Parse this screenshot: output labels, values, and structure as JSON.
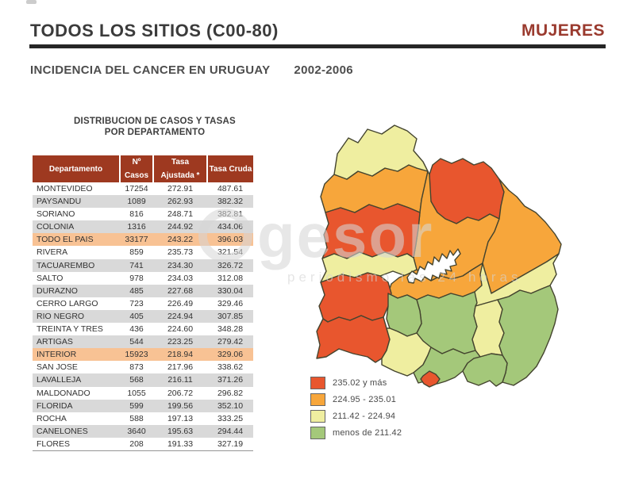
{
  "header": {
    "title": "TODOS LOS SITIOS (C00-80)",
    "gender_label": "MUJERES",
    "subtitle": "INCIDENCIA DEL CANCER EN URUGUAY",
    "period": "2002-2006"
  },
  "watermark": {
    "text": "gesor",
    "subtext": "periodismo las 24 horas"
  },
  "colors": {
    "red": "#E8562E",
    "orange": "#F7A63B",
    "paleYellow": "#EFEEA0",
    "green": "#A4C87A",
    "headerBg": "#9E3920",
    "rowGray": "#D9D9D9",
    "rowHighlight": "#F8C294",
    "mapStroke": "#44442F",
    "titleRed": "#9A3A2E"
  },
  "legend": {
    "items": [
      {
        "label": "235.02 y más",
        "color": "red"
      },
      {
        "label": "224.95 -  235.01",
        "color": "orange"
      },
      {
        "label": "211.42 -  224.94",
        "color": "paleYellow"
      },
      {
        "label": "menos de 211.42",
        "color": "green"
      }
    ]
  },
  "chart_data": {
    "type": "table",
    "table": {
      "caption_line1": "DISTRIBUCION DE CASOS Y TASAS",
      "caption_line2": "POR DEPARTAMENTO",
      "columns": [
        "Departamento",
        "Nº Casos",
        "Tasa Ajustada *",
        "Tasa Cruda"
      ],
      "rows": [
        {
          "department": "MONTEVIDEO",
          "cases": "17254",
          "adjusted": "272.91",
          "crude": "487.61",
          "style": "white"
        },
        {
          "department": "PAYSANDU",
          "cases": "1089",
          "adjusted": "262.93",
          "crude": "382.32",
          "style": "gray"
        },
        {
          "department": "SORIANO",
          "cases": "816",
          "adjusted": "248.71",
          "crude": "382.81",
          "style": "white"
        },
        {
          "department": "COLONIA",
          "cases": "1316",
          "adjusted": "244.92",
          "crude": "434.06",
          "style": "gray"
        },
        {
          "department": "TODO EL PAIS",
          "cases": "33177",
          "adjusted": "243.22",
          "crude": "396.03",
          "style": "highlight"
        },
        {
          "department": "RIVERA",
          "cases": "859",
          "adjusted": "235.73",
          "crude": "321.54",
          "style": "white"
        },
        {
          "department": "TACUAREMBO",
          "cases": "741",
          "adjusted": "234.30",
          "crude": "326.72",
          "style": "gray"
        },
        {
          "department": "SALTO",
          "cases": "978",
          "adjusted": "234.03",
          "crude": "312.08",
          "style": "white"
        },
        {
          "department": "DURAZNO",
          "cases": "485",
          "adjusted": "227.68",
          "crude": "330.04",
          "style": "gray"
        },
        {
          "department": "CERRO LARGO",
          "cases": "723",
          "adjusted": "226.49",
          "crude": "329.46",
          "style": "white"
        },
        {
          "department": "RIO NEGRO",
          "cases": "405",
          "adjusted": "224.94",
          "crude": "307.85",
          "style": "gray"
        },
        {
          "department": "TREINTA Y TRES",
          "cases": "436",
          "adjusted": "224.60",
          "crude": "348.28",
          "style": "white"
        },
        {
          "department": "ARTIGAS",
          "cases": "544",
          "adjusted": "223.25",
          "crude": "279.42",
          "style": "gray"
        },
        {
          "department": "INTERIOR",
          "cases": "15923",
          "adjusted": "218.94",
          "crude": "329.06",
          "style": "highlight"
        },
        {
          "department": "SAN JOSE",
          "cases": "873",
          "adjusted": "217.96",
          "crude": "338.62",
          "style": "white"
        },
        {
          "department": "LAVALLEJA",
          "cases": "568",
          "adjusted": "216.11",
          "crude": "371.26",
          "style": "gray"
        },
        {
          "department": "MALDONADO",
          "cases": "1055",
          "adjusted": "206.72",
          "crude": "296.82",
          "style": "white"
        },
        {
          "department": "FLORIDA",
          "cases": "599",
          "adjusted": "199.56",
          "crude": "352.10",
          "style": "gray"
        },
        {
          "department": "ROCHA",
          "cases": "588",
          "adjusted": "197.13",
          "crude": "333.25",
          "style": "white"
        },
        {
          "department": "CANELONES",
          "cases": "3640",
          "adjusted": "195.63",
          "crude": "294.44",
          "style": "gray"
        },
        {
          "department": "FLORES",
          "cases": "208",
          "adjusted": "191.33",
          "crude": "327.19",
          "style": "white"
        }
      ]
    },
    "map": {
      "subtype": "choropleth",
      "region": "Uruguay departments, Tasa Ajustada classes",
      "class_bounds": {
        "red": "235.02 y más",
        "orange": "224.95 - 235.01",
        "paleYellow": "211.42 - 224.94",
        "green": "menos de 211.42"
      },
      "department_classes": {
        "ARTIGAS": "paleYellow",
        "SALTO": "orange",
        "RIVERA": "red",
        "PAYSANDU": "red",
        "TACUAREMBO": "orange",
        "CERRO LARGO": "orange",
        "RIO NEGRO": "paleYellow",
        "DURAZNO": "orange",
        "TREINTA Y TRES": "paleYellow",
        "SORIANO": "red",
        "FLORES": "green",
        "FLORIDA": "green",
        "LAVALLEJA": "paleYellow",
        "ROCHA": "green",
        "COLONIA": "red",
        "SAN JOSE": "paleYellow",
        "CANELONES": "green",
        "MALDONADO": "green",
        "MONTEVIDEO": "red"
      }
    }
  }
}
